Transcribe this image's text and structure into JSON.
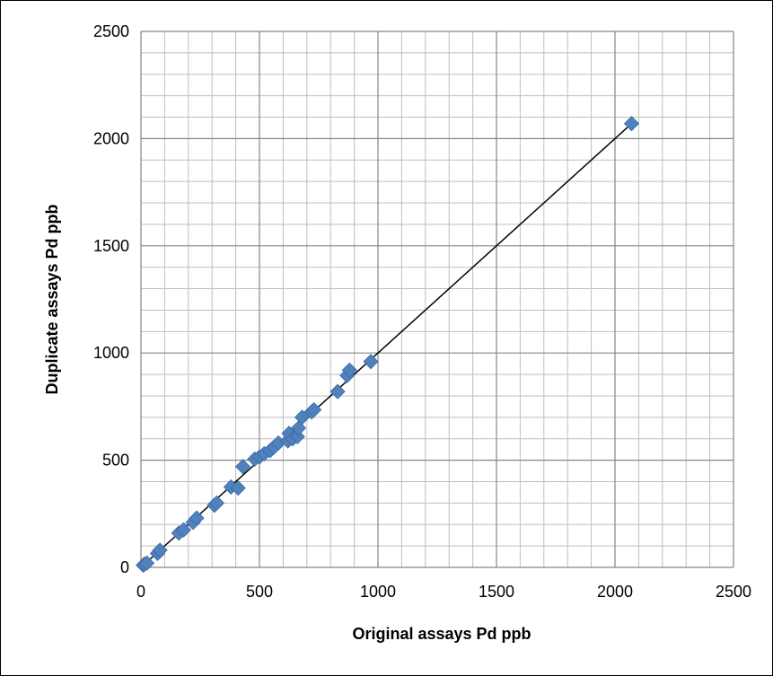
{
  "chart_data": {
    "type": "scatter",
    "title": "",
    "xlabel": "Original assays Pd ppb",
    "ylabel": "Duplicate assays Pd ppb",
    "xlim": [
      0,
      2500
    ],
    "ylim": [
      0,
      2500
    ],
    "x_major_ticks": [
      "0",
      "500",
      "1000",
      "1500",
      "2000",
      "2500"
    ],
    "y_major_ticks": [
      "0",
      "500",
      "1000",
      "1500",
      "2000",
      "2500"
    ],
    "minor_grid_step": 100,
    "major_grid_step": 500,
    "grid": true,
    "legend": "none",
    "marker": "diamond",
    "marker_color": "#4f81bd",
    "trendline_color": "#000000",
    "trendline": [
      [
        0,
        0
      ],
      [
        2070,
        2070
      ]
    ],
    "series": [
      {
        "x": [
          10,
          15,
          25,
          70,
          80,
          160,
          180,
          220,
          235,
          310,
          320,
          380,
          410,
          430,
          480,
          500,
          520,
          545,
          560,
          580,
          620,
          625,
          640,
          660,
          665,
          680,
          720,
          730,
          830,
          870,
          880,
          970,
          2070
        ],
        "y": [
          10,
          15,
          20,
          65,
          80,
          160,
          175,
          210,
          230,
          290,
          300,
          375,
          370,
          470,
          505,
          515,
          530,
          545,
          560,
          580,
          590,
          625,
          600,
          610,
          650,
          700,
          725,
          735,
          820,
          895,
          920,
          960,
          2070
        ]
      }
    ]
  }
}
